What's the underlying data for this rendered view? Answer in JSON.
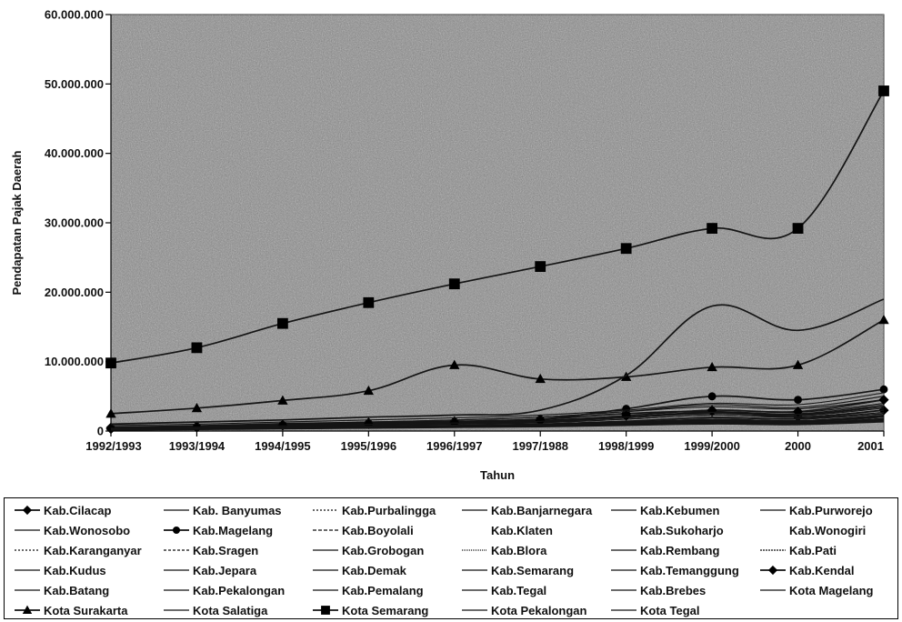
{
  "chart_data": {
    "type": "line",
    "xlabel": "Tahun",
    "ylabel": "Pendapatan Pajak Daerah",
    "categories": [
      "1992/1993",
      "1993/1994",
      "1994/1995",
      "1995/1996",
      "1996/1997",
      "1997/1988",
      "1998/1999",
      "1999/2000",
      "2000",
      "2001"
    ],
    "ylim": [
      0,
      60000000
    ],
    "yticks": [
      "0",
      "10.000.000",
      "20.000.000",
      "30.000.000",
      "40.000.000",
      "50.000.000",
      "60.000.000"
    ],
    "grid": false,
    "legend_position": "bottom",
    "series": [
      {
        "name": "Kab.Cilacap",
        "marker": "diamond",
        "values": [
          500000,
          700000,
          900000,
          1200000,
          1400000,
          1700000,
          2500000,
          2800000,
          2000000,
          3000000
        ]
      },
      {
        "name": "Kab. Banyumas",
        "marker": "none",
        "values": [
          600000,
          800000,
          1100000,
          1300000,
          1600000,
          2000000,
          2800000,
          3500000,
          3200000,
          4500000
        ]
      },
      {
        "name": "Kab.Purbalingga",
        "marker": "none",
        "values": [
          200000,
          300000,
          400000,
          500000,
          600000,
          700000,
          900000,
          1200000,
          1000000,
          1500000
        ]
      },
      {
        "name": "Kab.Banjarnegara",
        "marker": "none",
        "values": [
          200000,
          300000,
          400000,
          500000,
          650000,
          750000,
          1000000,
          1300000,
          1100000,
          1700000
        ]
      },
      {
        "name": "Kab.Kebumen",
        "marker": "none",
        "values": [
          250000,
          350000,
          450000,
          550000,
          700000,
          800000,
          1100000,
          1400000,
          1200000,
          1800000
        ]
      },
      {
        "name": "Kab.Purworejo",
        "marker": "none",
        "values": [
          200000,
          300000,
          400000,
          500000,
          600000,
          700000,
          950000,
          1250000,
          1050000,
          1600000
        ]
      },
      {
        "name": "Kab.Wonosobo",
        "marker": "none",
        "values": [
          150000,
          250000,
          350000,
          450000,
          550000,
          650000,
          850000,
          1100000,
          950000,
          1400000
        ]
      },
      {
        "name": "Kab.Magelang",
        "marker": "circle",
        "values": [
          400000,
          600000,
          900000,
          1100000,
          1300000,
          1700000,
          3200000,
          5000000,
          4500000,
          6000000
        ]
      },
      {
        "name": "Kab.Boyolali",
        "marker": "none",
        "values": [
          300000,
          400000,
          600000,
          800000,
          1000000,
          1200000,
          1700000,
          2300000,
          2000000,
          3000000
        ]
      },
      {
        "name": "Kab.Klaten",
        "marker": "none",
        "values": [
          400000,
          600000,
          800000,
          1000000,
          1200000,
          1500000,
          2200000,
          3000000,
          2700000,
          4000000
        ]
      },
      {
        "name": "Kab.Sukoharjo",
        "marker": "none",
        "values": [
          300000,
          450000,
          650000,
          850000,
          1050000,
          1300000,
          1900000,
          2600000,
          2300000,
          3500000
        ]
      },
      {
        "name": "Kab.Wonogiri",
        "marker": "none",
        "values": [
          200000,
          300000,
          450000,
          600000,
          750000,
          900000,
          1200000,
          1600000,
          1400000,
          2100000
        ]
      },
      {
        "name": "Kab.Karanganyar",
        "marker": "none",
        "values": [
          300000,
          450000,
          650000,
          850000,
          1100000,
          1400000,
          2000000,
          2800000,
          2500000,
          3800000
        ]
      },
      {
        "name": "Kab.Sragen",
        "marker": "none",
        "values": [
          200000,
          300000,
          450000,
          600000,
          800000,
          1000000,
          1400000,
          1900000,
          1700000,
          2500000
        ]
      },
      {
        "name": "Kab.Grobogan",
        "marker": "none",
        "values": [
          200000,
          300000,
          400000,
          550000,
          700000,
          850000,
          1150000,
          1500000,
          1300000,
          2000000
        ]
      },
      {
        "name": "Kab.Blora",
        "marker": "none",
        "values": [
          150000,
          250000,
          350000,
          450000,
          550000,
          650000,
          900000,
          1200000,
          1000000,
          1500000
        ]
      },
      {
        "name": "Kab.Rembang",
        "marker": "none",
        "values": [
          150000,
          200000,
          300000,
          400000,
          500000,
          600000,
          800000,
          1000000,
          900000,
          1300000
        ]
      },
      {
        "name": "Kab.Pati",
        "marker": "none",
        "values": [
          300000,
          450000,
          600000,
          800000,
          1000000,
          1200000,
          1700000,
          2300000,
          2000000,
          3000000
        ]
      },
      {
        "name": "Kab.Kudus",
        "marker": "none",
        "values": [
          500000,
          700000,
          1000000,
          1300000,
          1600000,
          2000000,
          2800000,
          3800000,
          3400000,
          5000000
        ]
      },
      {
        "name": "Kab.Jepara",
        "marker": "none",
        "values": [
          300000,
          450000,
          650000,
          850000,
          1050000,
          1300000,
          1900000,
          2500000,
          2200000,
          3300000
        ]
      },
      {
        "name": "Kab.Demak",
        "marker": "none",
        "values": [
          200000,
          300000,
          400000,
          550000,
          700000,
          850000,
          1150000,
          1500000,
          1300000,
          2000000
        ]
      },
      {
        "name": "Kab.Semarang",
        "marker": "none",
        "values": [
          800000,
          1000000,
          1300000,
          1600000,
          1900000,
          2300000,
          3000000,
          4000000,
          3800000,
          5500000
        ]
      },
      {
        "name": "Kab.Temanggung",
        "marker": "none",
        "values": [
          200000,
          300000,
          400000,
          500000,
          650000,
          800000,
          1100000,
          1400000,
          1200000,
          1800000
        ]
      },
      {
        "name": "Kab.Kendal",
        "marker": "diamond",
        "values": [
          300000,
          500000,
          800000,
          1000000,
          1200000,
          1500000,
          2200000,
          3000000,
          2800000,
          4500000
        ]
      },
      {
        "name": "Kab.Batang",
        "marker": "none",
        "values": [
          150000,
          250000,
          350000,
          450000,
          550000,
          650000,
          900000,
          1200000,
          1000000,
          1500000
        ]
      },
      {
        "name": "Kab.Pekalongan",
        "marker": "none",
        "values": [
          200000,
          300000,
          450000,
          600000,
          750000,
          900000,
          1250000,
          1700000,
          1500000,
          2200000
        ]
      },
      {
        "name": "Kab.Pemalang",
        "marker": "none",
        "values": [
          200000,
          300000,
          400000,
          550000,
          700000,
          850000,
          1200000,
          1600000,
          1400000,
          2100000
        ]
      },
      {
        "name": "Kab.Tegal",
        "marker": "none",
        "values": [
          200000,
          300000,
          450000,
          600000,
          750000,
          900000,
          1300000,
          1700000,
          1500000,
          2300000
        ]
      },
      {
        "name": "Kab.Brebes",
        "marker": "none",
        "values": [
          250000,
          350000,
          500000,
          650000,
          800000,
          1000000,
          1400000,
          1900000,
          1700000,
          2500000
        ]
      },
      {
        "name": "Kota Magelang",
        "marker": "none",
        "values": [
          300000,
          400000,
          550000,
          700000,
          850000,
          1050000,
          1450000,
          2000000,
          1800000,
          2700000
        ]
      },
      {
        "name": "Kota Surakarta",
        "marker": "triangle",
        "values": [
          2500000,
          3300000,
          4400000,
          5800000,
          9500000,
          7500000,
          7800000,
          9200000,
          9500000,
          16000000
        ]
      },
      {
        "name": "Kota Salatiga",
        "marker": "none",
        "values": [
          150000,
          250000,
          350000,
          450000,
          550000,
          650000,
          900000,
          1200000,
          1000000,
          1500000
        ]
      },
      {
        "name": "Kota Semarang",
        "marker": "square",
        "values": [
          9800000,
          12000000,
          15500000,
          18500000,
          21200000,
          23700000,
          26300000,
          29200000,
          29200000,
          49000000
        ]
      },
      {
        "name": "Kota Pekalongan",
        "marker": "none",
        "values": [
          1000000,
          1300000,
          1600000,
          2000000,
          2300000,
          3000000,
          8000000,
          18000000,
          14500000,
          19000000
        ]
      },
      {
        "name": "Kota Tegal",
        "marker": "none",
        "values": [
          400000,
          550000,
          750000,
          950000,
          1150000,
          1400000,
          2000000,
          2700000,
          2400000,
          3600000
        ]
      }
    ]
  },
  "colors": {
    "plot_background": "#8d8d8d",
    "line": "#111111",
    "marker": "#000000"
  }
}
